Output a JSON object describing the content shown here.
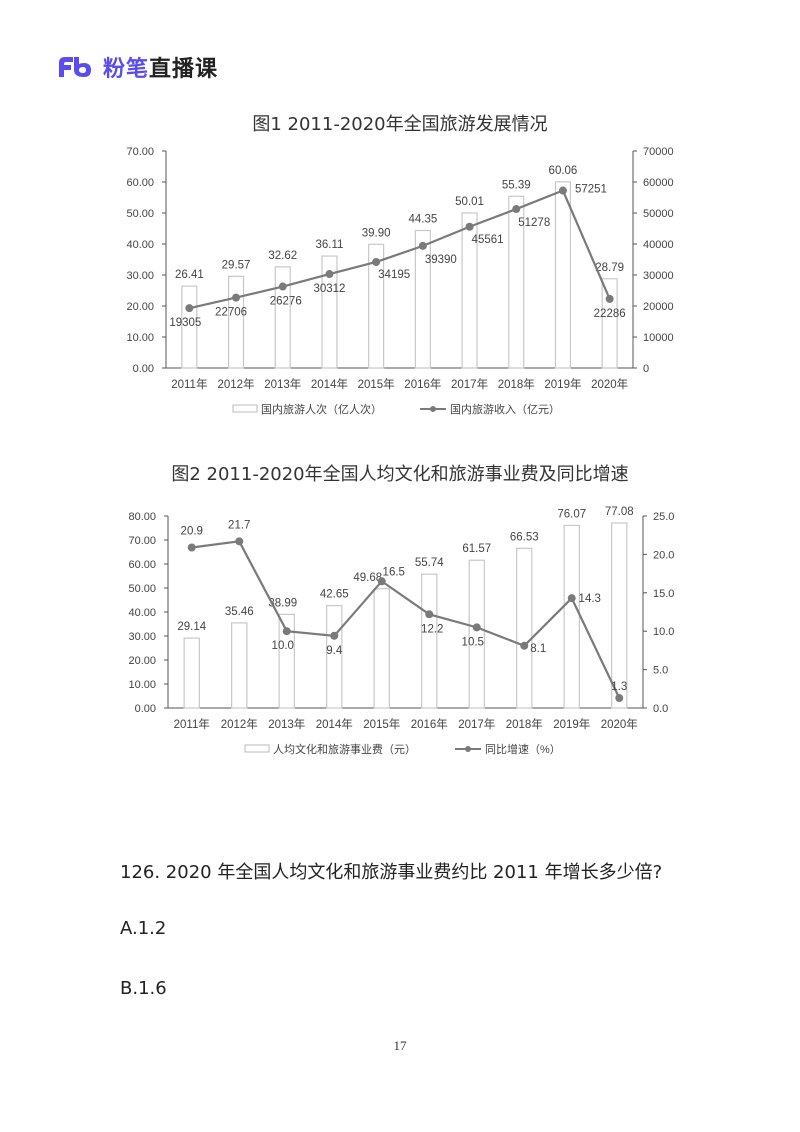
{
  "header": {
    "logo_mark": "Fb",
    "brand": "粉笔",
    "product": "直播课",
    "brand_color": "#5b4cf0"
  },
  "chart_data": [
    {
      "type": "bar+line",
      "title": "图1  2011-2020年全国旅游发展情况",
      "categories": [
        "2011年",
        "2012年",
        "2013年",
        "2014年",
        "2015年",
        "2016年",
        "2017年",
        "2018年",
        "2019年",
        "2020年"
      ],
      "series": [
        {
          "name": "国内旅游人次（亿人次）",
          "type": "bar",
          "axis": "left",
          "values": [
            26.41,
            29.57,
            32.62,
            36.11,
            39.9,
            44.35,
            50.01,
            55.39,
            60.06,
            28.79
          ],
          "labels": [
            "26.41",
            "29.57",
            "32.62",
            "36.11",
            "39.90",
            "44.35",
            "50.01",
            "55.39",
            "60.06",
            "28.79"
          ]
        },
        {
          "name": "国内旅游收入（亿元）",
          "type": "line",
          "axis": "right",
          "values": [
            19305,
            22706,
            26276,
            30312,
            34195,
            39390,
            45561,
            51278,
            57251,
            22286
          ],
          "labels": [
            "19305",
            "22706",
            "26276",
            "30312",
            "34195",
            "39390",
            "45561",
            "51278",
            "57251",
            "22286"
          ]
        }
      ],
      "left_axis": {
        "ylim": [
          0,
          70
        ],
        "ticks": [
          "0.00",
          "10.00",
          "20.00",
          "30.00",
          "40.00",
          "50.00",
          "60.00",
          "70.00"
        ]
      },
      "right_axis": {
        "ylim": [
          0,
          70000
        ],
        "ticks": [
          "0",
          "10000",
          "20000",
          "30000",
          "40000",
          "50000",
          "60000",
          "70000"
        ]
      },
      "legend_position": "bottom",
      "grid": false
    },
    {
      "type": "bar+line",
      "title": "图2  2011-2020年全国人均文化和旅游事业费及同比增速",
      "categories": [
        "2011年",
        "2012年",
        "2013年",
        "2014年",
        "2015年",
        "2016年",
        "2017年",
        "2018年",
        "2019年",
        "2020年"
      ],
      "series": [
        {
          "name": "人均文化和旅游事业费（元）",
          "type": "bar",
          "axis": "left",
          "values": [
            29.14,
            35.46,
            38.99,
            42.65,
            49.68,
            55.74,
            61.57,
            66.53,
            76.07,
            77.08
          ],
          "labels": [
            "29.14",
            "35.46",
            "38.99",
            "42.65",
            "49.68",
            "55.74",
            "61.57",
            "66.53",
            "76.07",
            "77.08"
          ]
        },
        {
          "name": "同比增速（%）",
          "type": "line",
          "axis": "right",
          "values": [
            20.9,
            21.7,
            10.0,
            9.4,
            16.5,
            12.2,
            10.5,
            8.1,
            14.3,
            1.3
          ],
          "labels": [
            "20.9",
            "21.7",
            "10.0",
            "9.4",
            "16.5",
            "12.2",
            "10.5",
            "8.1",
            "14.3",
            "1.3"
          ]
        }
      ],
      "left_axis": {
        "ylim": [
          0,
          80
        ],
        "ticks": [
          "0.00",
          "10.00",
          "20.00",
          "30.00",
          "40.00",
          "50.00",
          "60.00",
          "70.00",
          "80.00"
        ]
      },
      "right_axis": {
        "ylim": [
          0,
          25
        ],
        "ticks": [
          "0.0",
          "5.0",
          "10.0",
          "15.0",
          "20.0",
          "25.0"
        ]
      },
      "legend_position": "bottom",
      "grid": false
    }
  ],
  "question": {
    "text": "126. 2020 年全国人均文化和旅游事业费约比 2011 年增长多少倍?",
    "options": [
      {
        "label": "A.1.2"
      },
      {
        "label": "B.1.6"
      }
    ]
  },
  "footer": {
    "page_number": "17"
  }
}
